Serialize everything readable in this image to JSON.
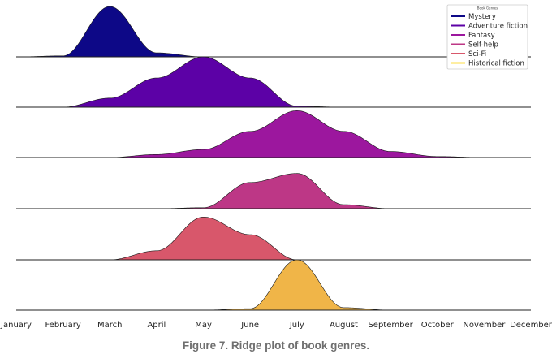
{
  "caption": "Figure 7. Ridge plot of book genres.",
  "chart_data": {
    "type": "area",
    "subtype": "ridgeline",
    "categories": [
      "January",
      "February",
      "March",
      "April",
      "May",
      "June",
      "July",
      "August",
      "September",
      "October",
      "November",
      "December"
    ],
    "legend": {
      "title": "Book Genres",
      "placement": "top-right"
    },
    "grid": false,
    "series": [
      {
        "name": "Mystery",
        "color": "#0d0887",
        "values": [
          0.0,
          0.02,
          1.0,
          0.08,
          0.0,
          0.0,
          0.0,
          0.0,
          0.0,
          0.0,
          0.0,
          0.0
        ]
      },
      {
        "name": "Adventure fiction",
        "color": "#5c01a6",
        "values": [
          0.0,
          0.0,
          0.18,
          0.58,
          1.0,
          0.58,
          0.02,
          0.0,
          0.0,
          0.0,
          0.0,
          0.0
        ]
      },
      {
        "name": "Fantasy",
        "color": "#9c179e",
        "values": [
          0.0,
          0.0,
          0.0,
          0.06,
          0.16,
          0.52,
          0.93,
          0.52,
          0.12,
          0.02,
          0.0,
          0.0
        ]
      },
      {
        "name": "Self-help",
        "color": "#bd3786",
        "values": [
          0.0,
          0.0,
          0.0,
          0.0,
          0.02,
          0.52,
          0.7,
          0.08,
          0.0,
          0.0,
          0.0,
          0.0
        ]
      },
      {
        "name": "Sci-Fi",
        "color": "#d8576b",
        "values": [
          0.0,
          0.0,
          0.0,
          0.18,
          0.85,
          0.5,
          0.0,
          0.0,
          0.0,
          0.0,
          0.0,
          0.0
        ]
      },
      {
        "name": "Historical fiction",
        "color": "#f0b548",
        "values": [
          0.0,
          0.0,
          0.0,
          0.0,
          0.0,
          0.03,
          1.0,
          0.05,
          0.0,
          0.0,
          0.0,
          0.0
        ]
      }
    ]
  }
}
